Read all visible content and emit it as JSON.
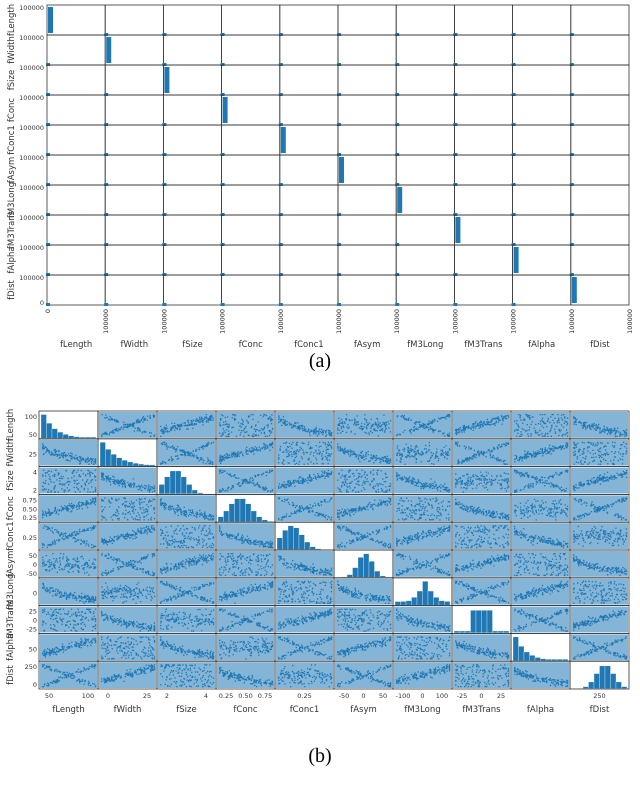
{
  "variables": [
    "fLength",
    "fWidth",
    "fSize",
    "fConc",
    "fConc1",
    "fAsym",
    "fM3Long",
    "fM3Trans",
    "fAlpha",
    "fDist"
  ],
  "colors": {
    "series": "#1f77b4",
    "frame": "#333333",
    "text": "#222222"
  },
  "chart_data": [
    {
      "type": "scatter",
      "panel": "(a)",
      "title": "",
      "variables": [
        "fLength",
        "fWidth",
        "fSize",
        "fConc",
        "fConc1",
        "fAsym",
        "fM3Long",
        "fM3Trans",
        "fAlpha",
        "fDist"
      ],
      "x_ticks": [
        "0",
        "100000",
        "100000",
        "100000",
        "100000",
        "100000",
        "100000",
        "100000",
        "100000",
        "100000",
        "100000"
      ],
      "y_ticks": [
        "100000",
        "0"
      ],
      "diagonal": "histogram",
      "grid": false,
      "description_of_values": "all points collapsed near 0 on axes scaled to 100000"
    },
    {
      "type": "scatter",
      "panel": "(b)",
      "title": "",
      "variables": [
        "fLength",
        "fWidth",
        "fSize",
        "fConc",
        "fConc1",
        "fAsym",
        "fM3Long",
        "fM3Trans",
        "fAlpha",
        "fDist"
      ],
      "x_tick_labels": [
        [
          "50",
          "100"
        ],
        [
          "0",
          "25"
        ],
        [
          "2",
          "4"
        ],
        [
          "0.25",
          "0.50",
          "0.75"
        ],
        [
          "0.25"
        ],
        [
          "-50",
          "0",
          "50"
        ],
        [
          "-100",
          "0",
          "100"
        ],
        [
          "-25",
          "0",
          "25"
        ],
        [],
        [
          "250"
        ]
      ],
      "y_tick_labels": [
        [
          "100",
          "50"
        ],
        [
          "25"
        ],
        [
          "4",
          "2"
        ],
        [
          "0.75",
          "0.50",
          "0.25"
        ],
        [
          "0.25"
        ],
        [
          "50",
          "0",
          "-50"
        ],
        [
          "0"
        ],
        [
          "25",
          "0",
          "-25"
        ],
        [
          "50"
        ],
        [
          "250",
          "0"
        ]
      ],
      "diagonal": "histogram",
      "grid": false
    }
  ],
  "captions": {
    "a": "(a)",
    "b": "(b)"
  }
}
